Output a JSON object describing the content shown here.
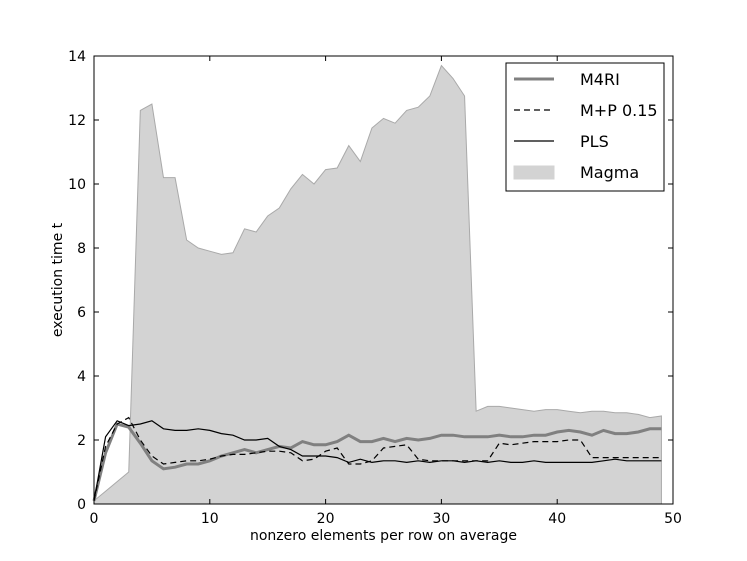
{
  "chart_data": {
    "type": "line",
    "title": "",
    "xlabel": "nonzero elements per row on average",
    "ylabel": "execution time t",
    "xlim": [
      0,
      50
    ],
    "ylim": [
      0,
      14
    ],
    "xticks": [
      "0",
      "10",
      "20",
      "30",
      "40",
      "50"
    ],
    "yticks": [
      "0",
      "2",
      "4",
      "6",
      "8",
      "10",
      "12",
      "14"
    ],
    "grid": false,
    "legend_position": "top-right",
    "x": [
      0,
      1,
      2,
      3,
      4,
      5,
      6,
      7,
      8,
      9,
      10,
      11,
      12,
      13,
      14,
      15,
      16,
      17,
      18,
      19,
      20,
      21,
      22,
      23,
      24,
      25,
      26,
      27,
      28,
      29,
      30,
      31,
      32,
      33,
      34,
      35,
      36,
      37,
      38,
      39,
      40,
      41,
      42,
      43,
      44,
      45,
      46,
      47,
      48,
      49
    ],
    "series": [
      {
        "name": "M4RI",
        "style": "thick-solid",
        "color": "#808080",
        "values": [
          0.1,
          1.6,
          2.5,
          2.4,
          1.9,
          1.35,
          1.1,
          1.15,
          1.25,
          1.25,
          1.35,
          1.5,
          1.6,
          1.7,
          1.6,
          1.7,
          1.8,
          1.75,
          1.95,
          1.85,
          1.85,
          1.95,
          2.15,
          1.95,
          1.95,
          2.05,
          1.95,
          2.05,
          2.0,
          2.05,
          2.15,
          2.15,
          2.1,
          2.1,
          2.1,
          2.15,
          2.1,
          2.1,
          2.15,
          2.15,
          2.25,
          2.3,
          2.25,
          2.15,
          2.3,
          2.2,
          2.2,
          2.25,
          2.35,
          2.35
        ]
      },
      {
        "name": "M+P 0.15",
        "style": "dashed",
        "color": "#000000",
        "values": [
          0.1,
          1.8,
          2.5,
          2.7,
          2.0,
          1.5,
          1.25,
          1.3,
          1.35,
          1.35,
          1.4,
          1.5,
          1.55,
          1.55,
          1.6,
          1.65,
          1.65,
          1.6,
          1.35,
          1.4,
          1.65,
          1.75,
          1.25,
          1.25,
          1.35,
          1.75,
          1.8,
          1.85,
          1.4,
          1.35,
          1.35,
          1.35,
          1.35,
          1.35,
          1.35,
          1.9,
          1.85,
          1.9,
          1.95,
          1.95,
          1.95,
          2.0,
          2.0,
          1.45,
          1.45,
          1.45,
          1.45,
          1.45,
          1.45,
          1.45
        ]
      },
      {
        "name": "PLS",
        "style": "solid",
        "color": "#000000",
        "values": [
          0.1,
          2.1,
          2.6,
          2.45,
          2.5,
          2.6,
          2.35,
          2.3,
          2.3,
          2.35,
          2.3,
          2.2,
          2.15,
          2.0,
          2.0,
          2.05,
          1.8,
          1.7,
          1.5,
          1.5,
          1.5,
          1.45,
          1.3,
          1.4,
          1.3,
          1.35,
          1.35,
          1.3,
          1.35,
          1.3,
          1.35,
          1.35,
          1.3,
          1.35,
          1.3,
          1.35,
          1.3,
          1.3,
          1.35,
          1.3,
          1.3,
          1.3,
          1.3,
          1.3,
          1.35,
          1.4,
          1.35,
          1.35,
          1.35,
          1.35
        ]
      },
      {
        "name": "Magma",
        "style": "area",
        "color": "#d3d3d3",
        "values": [
          0.1,
          0.4,
          0.7,
          1.0,
          12.3,
          12.5,
          10.2,
          10.2,
          8.25,
          8.0,
          7.9,
          7.8,
          7.85,
          8.6,
          8.5,
          9.0,
          9.25,
          9.85,
          10.3,
          10.0,
          10.45,
          10.5,
          11.2,
          10.7,
          11.75,
          12.05,
          11.9,
          12.3,
          12.4,
          12.75,
          13.7,
          13.3,
          12.75,
          2.9,
          3.05,
          3.05,
          3.0,
          2.95,
          2.9,
          2.95,
          2.95,
          2.9,
          2.85,
          2.9,
          2.9,
          2.85,
          2.85,
          2.8,
          2.7,
          2.75
        ]
      }
    ]
  }
}
